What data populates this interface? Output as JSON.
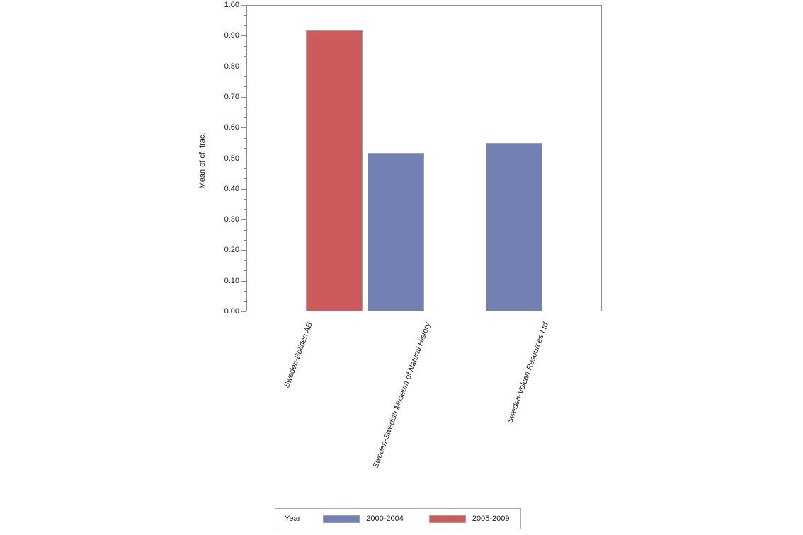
{
  "chart_data": {
    "type": "bar",
    "title": "",
    "xlabel": "",
    "ylabel": "Mean of cf, frac.",
    "ylim": [
      0,
      1
    ],
    "ytick_step": 0.1,
    "yticks": [
      "0.00",
      "0.10",
      "0.20",
      "0.30",
      "0.40",
      "0.50",
      "0.60",
      "0.70",
      "0.80",
      "0.90",
      "1.00"
    ],
    "minor_ticks_per_interval": 2,
    "grid": false,
    "categories": [
      "Sweden-Boliden AB",
      "Sweden-Swedish Museum of Natural History",
      "Sweden-Volcan Resources Ltd"
    ],
    "legend_title": "Year",
    "legend_position": "bottom",
    "series": [
      {
        "name": "2000-2004",
        "color": "#7380b4",
        "values": [
          null,
          0.516,
          0.547
        ]
      },
      {
        "name": "2005-2009",
        "color": "#cd5b5b",
        "values": [
          0.915,
          null,
          null
        ]
      }
    ]
  },
  "colors": {
    "bar_border": "#a0a0a0",
    "axis": "#8d8d96",
    "legend_border": "#ababab",
    "text": "#1a1a1a",
    "background": "#ffffff"
  }
}
